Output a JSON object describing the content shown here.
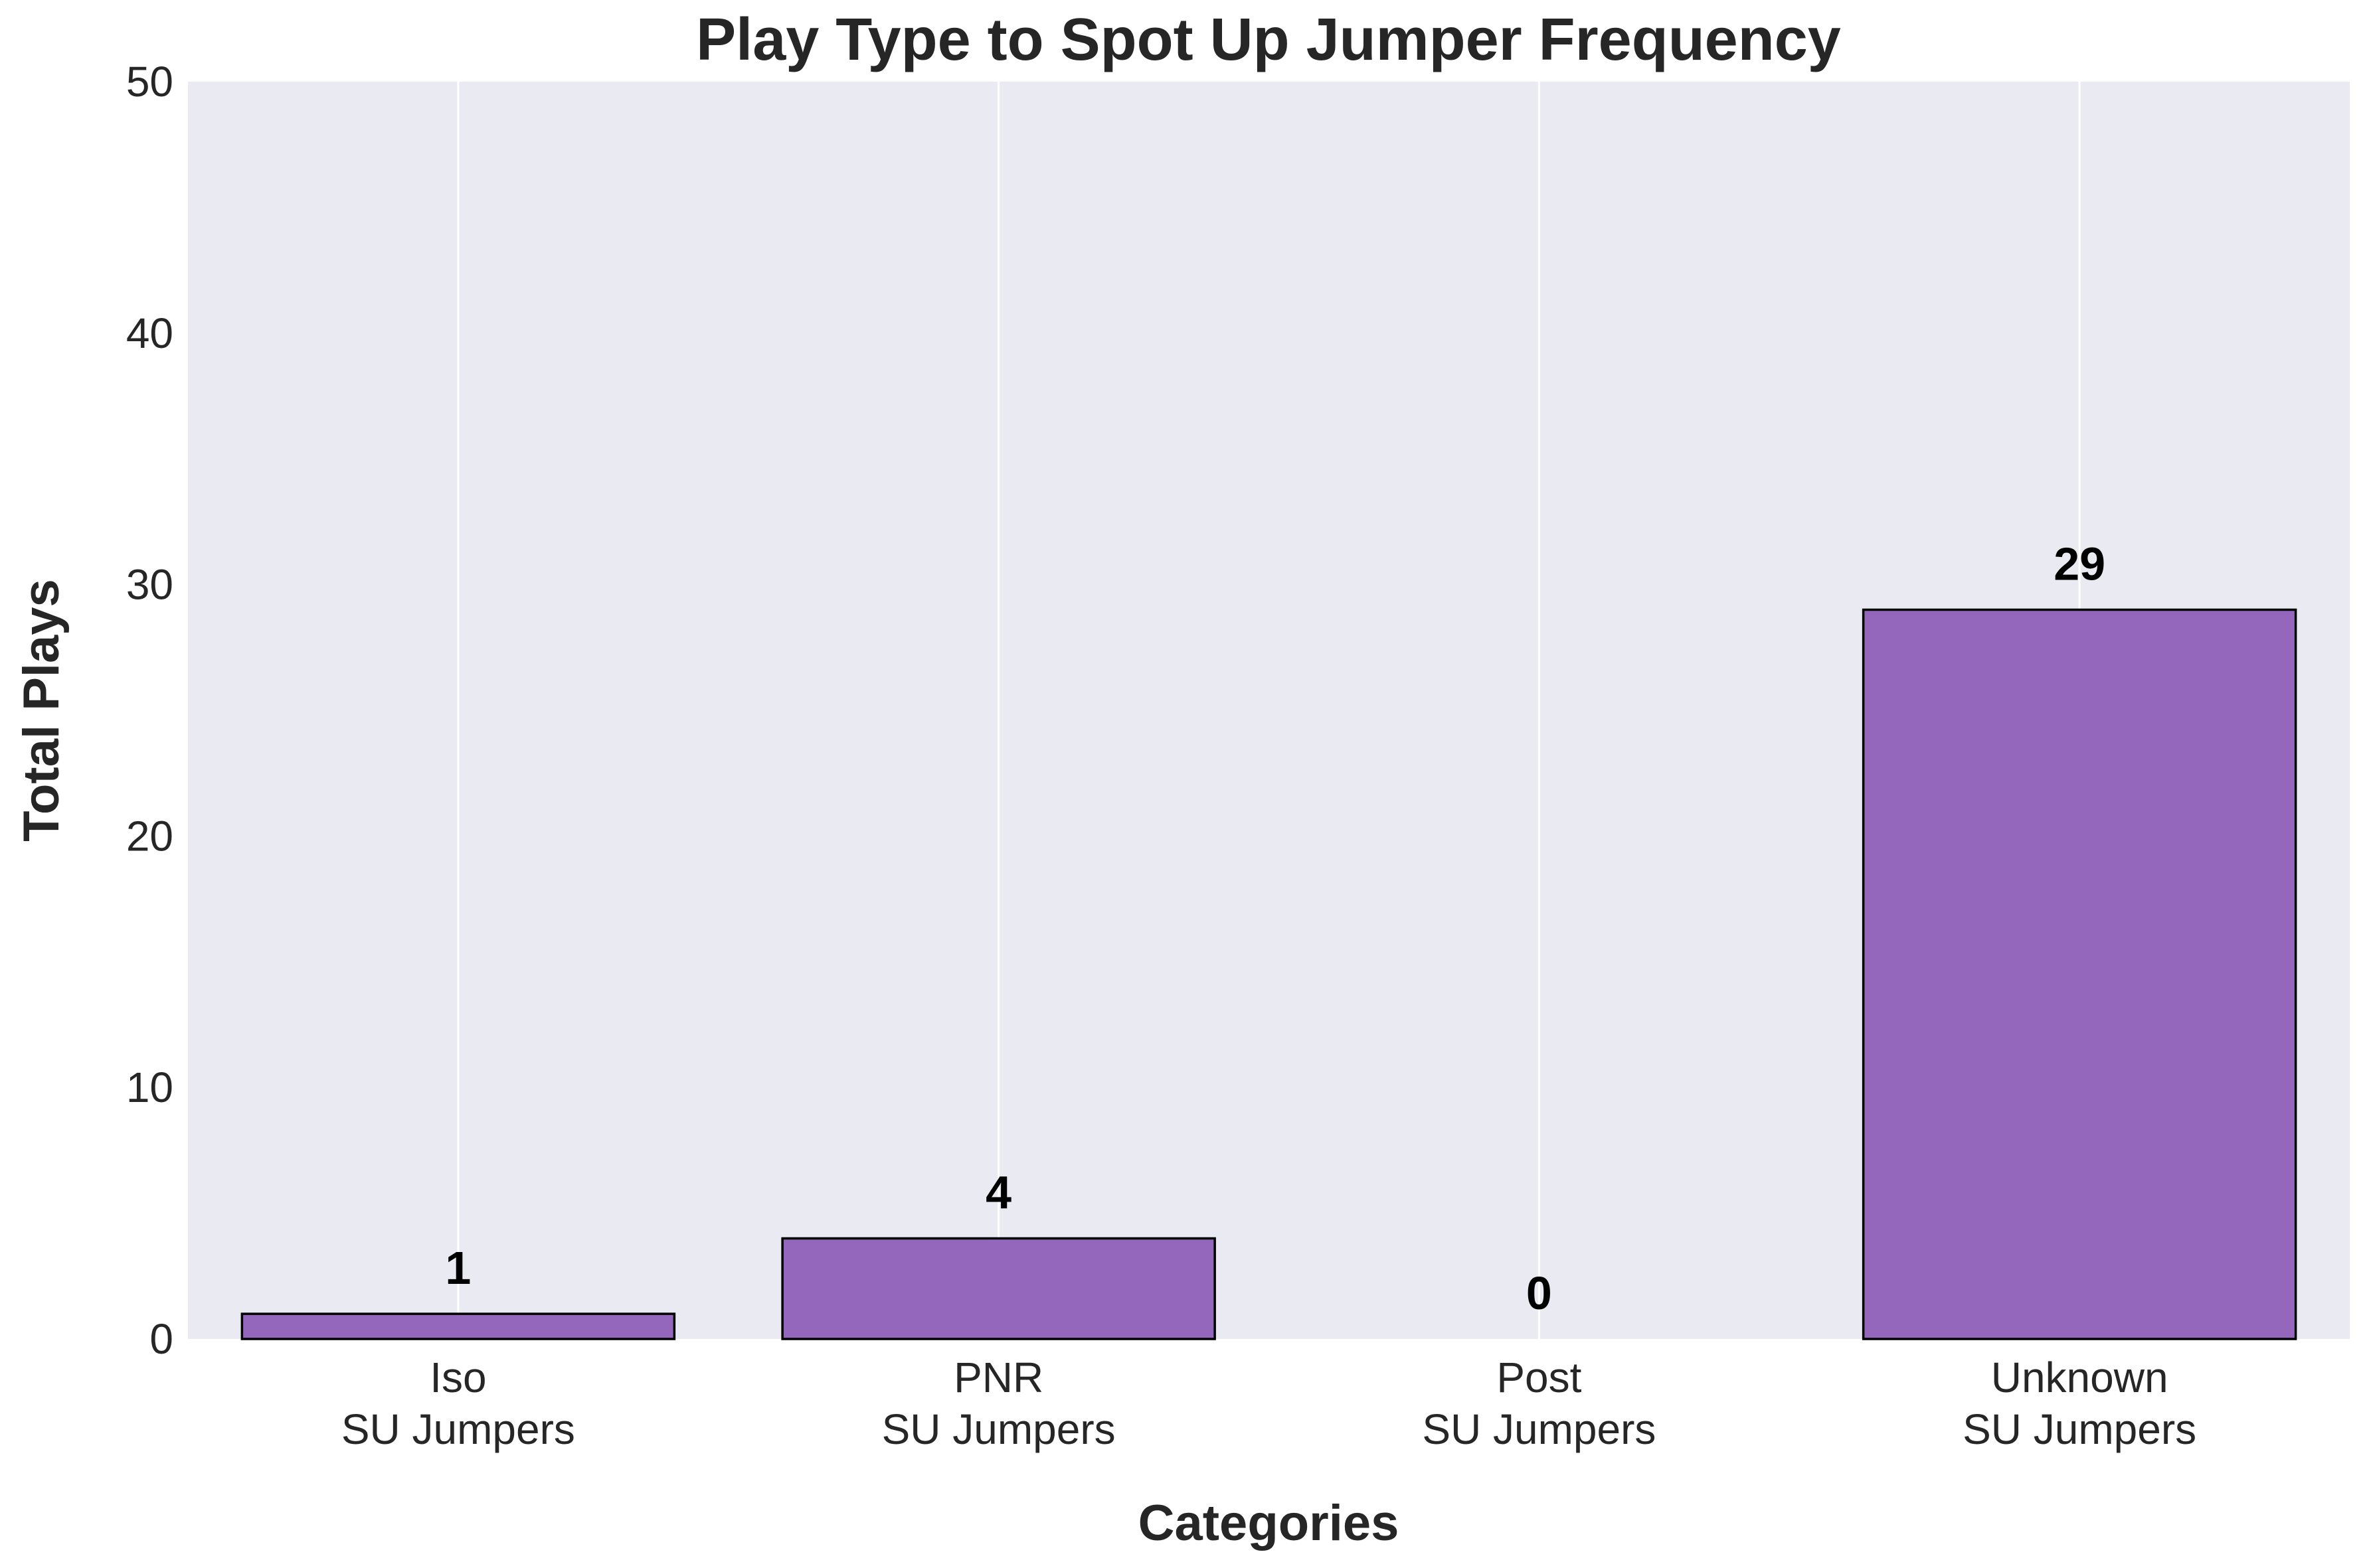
{
  "chart_data": {
    "type": "bar",
    "title": "Play Type to Spot Up Jumper Frequency",
    "xlabel": "Categories",
    "ylabel": "Total Plays",
    "categories": [
      [
        "Iso",
        "SU Jumpers"
      ],
      [
        "PNR",
        "SU Jumpers"
      ],
      [
        "Post",
        "SU Jumpers"
      ],
      [
        "Unknown",
        "SU Jumpers"
      ]
    ],
    "values": [
      1,
      4,
      0,
      29
    ],
    "data_labels": [
      "1",
      "4",
      "0",
      "29"
    ],
    "ylim": [
      0,
      50
    ],
    "yticks": [
      0,
      10,
      20,
      30,
      40,
      50
    ],
    "grid": "vertical",
    "legend": "none",
    "colors": {
      "bar_fill": "#9467bd",
      "bar_edge": "#000000",
      "plot_background": "#eaeaf2",
      "grid": "#ffffff",
      "text": "#262626"
    }
  }
}
